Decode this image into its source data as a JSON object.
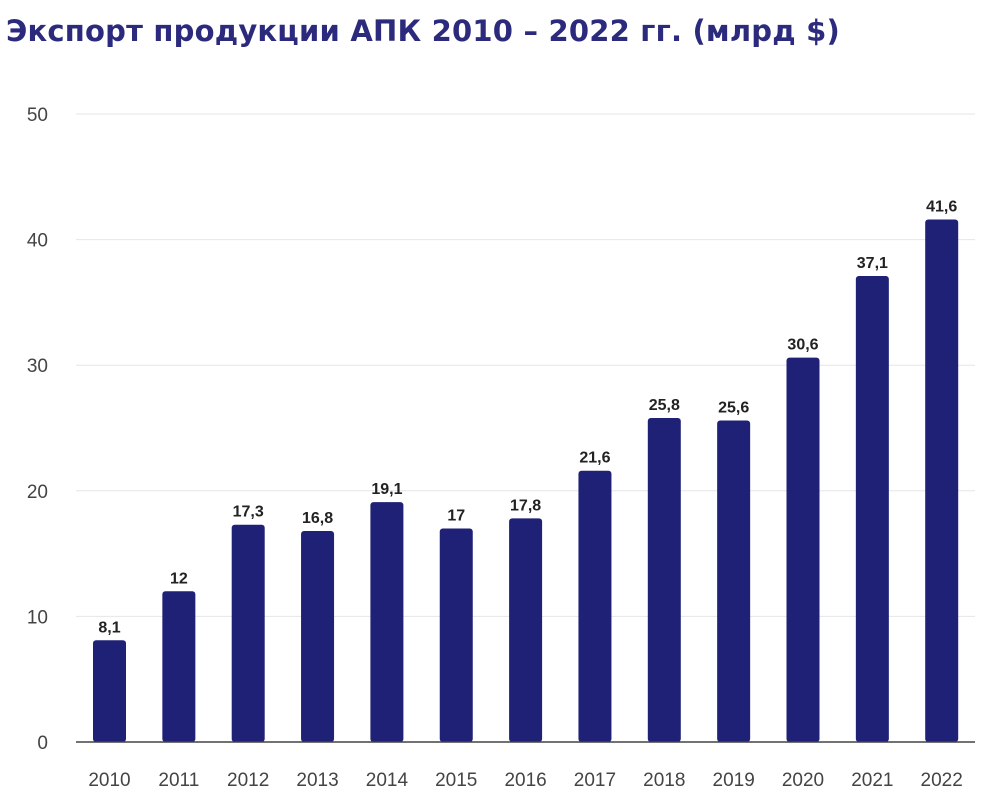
{
  "chart_data": {
    "type": "bar",
    "title": "Экспорт продукции АПК 2010 – 2022 гг. (млрд $)",
    "xlabel": "",
    "ylabel": "",
    "categories": [
      "2010",
      "2011",
      "2012",
      "2013",
      "2014",
      "2015",
      "2016",
      "2017",
      "2018",
      "2019",
      "2020",
      "2021",
      "2022"
    ],
    "values": [
      8.1,
      12,
      17.3,
      16.8,
      19.1,
      17,
      17.8,
      21.6,
      25.8,
      25.6,
      30.6,
      37.1,
      41.6
    ],
    "data_labels": [
      "8,1",
      "12",
      "17,3",
      "16,8",
      "19,1",
      "17",
      "17,8",
      "21,6",
      "25,8",
      "25,6",
      "30,6",
      "37,1",
      "41,6"
    ],
    "ylim": [
      0,
      50
    ],
    "yticks": [
      "0",
      "10",
      "20",
      "30",
      "40",
      "50"
    ],
    "grid": true,
    "legend": "none",
    "colors": {
      "bar": "#1e2175",
      "title": "#2b2a7c",
      "grid": "#e6e6e6",
      "axis": "#444444"
    }
  }
}
